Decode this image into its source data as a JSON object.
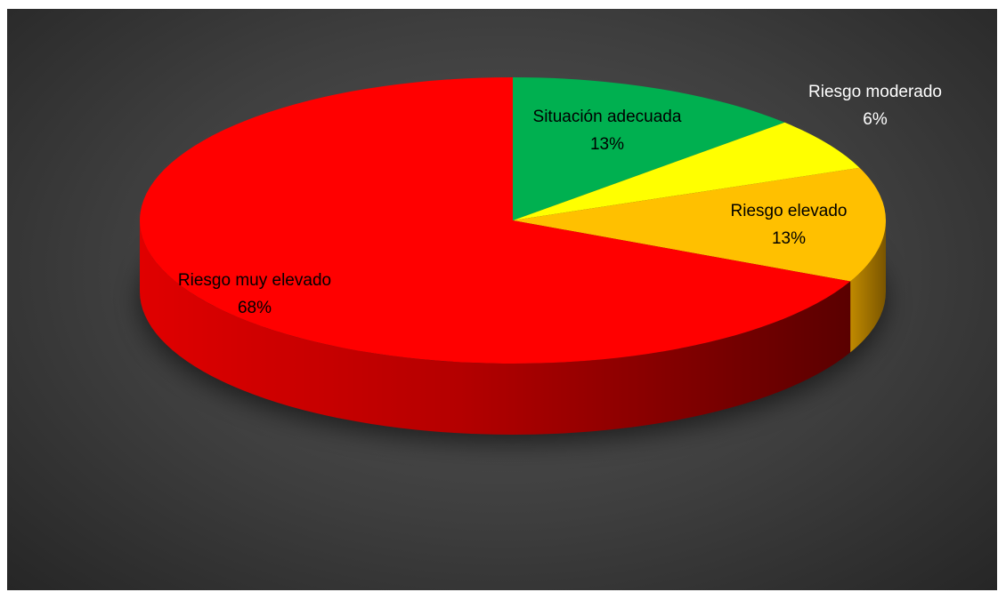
{
  "chart_data": {
    "type": "pie",
    "style": "3d",
    "title": "",
    "slices": [
      {
        "label": "Situación adecuada",
        "value": 13,
        "value_label": "13%",
        "color": "#00b050",
        "label_color": "#000000"
      },
      {
        "label": "Riesgo moderado",
        "value": 6,
        "value_label": "6%",
        "color": "#ffff00",
        "label_color": "#ffffff"
      },
      {
        "label": "Riesgo elevado",
        "value": 13,
        "value_label": "13%",
        "color": "#ffc000",
        "label_color": "#000000"
      },
      {
        "label": "Riesgo muy elevado",
        "value": 68,
        "value_label": "68%",
        "color": "#ff0000",
        "label_color": "#000000"
      }
    ],
    "legend": "none",
    "background": "dark gradient"
  }
}
